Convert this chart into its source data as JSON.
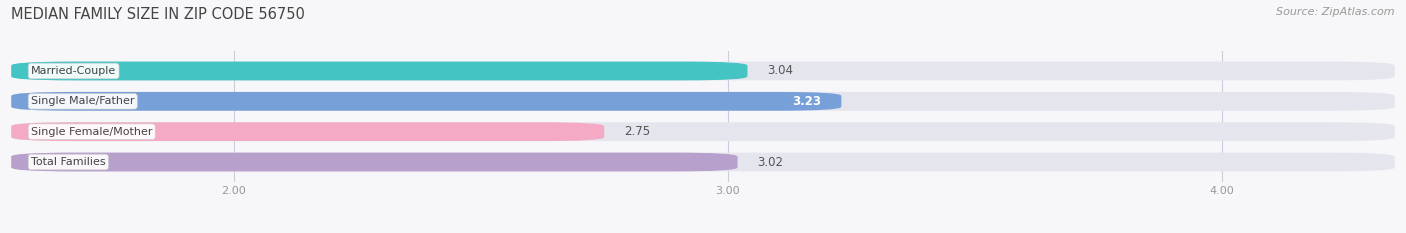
{
  "title": "MEDIAN FAMILY SIZE IN ZIP CODE 56750",
  "source": "Source: ZipAtlas.com",
  "categories": [
    "Married-Couple",
    "Single Male/Father",
    "Single Female/Mother",
    "Total Families"
  ],
  "values": [
    3.04,
    3.23,
    2.75,
    3.02
  ],
  "bar_colors": [
    "#45c4c4",
    "#779fd8",
    "#f4aac4",
    "#b8a0cc"
  ],
  "value_label_colors": [
    "#555555",
    "#ffffff",
    "#555555",
    "#555555"
  ],
  "xlim_min": 1.55,
  "xlim_max": 4.35,
  "xstart": 1.55,
  "xticks": [
    2.0,
    3.0,
    4.0
  ],
  "xtick_labels": [
    "2.00",
    "3.00",
    "4.00"
  ],
  "bar_height": 0.62,
  "background_color": "#f7f7f9",
  "bar_background_color": "#e5e5ee",
  "title_fontsize": 10.5,
  "source_fontsize": 8,
  "label_fontsize": 8,
  "value_fontsize": 8.5
}
